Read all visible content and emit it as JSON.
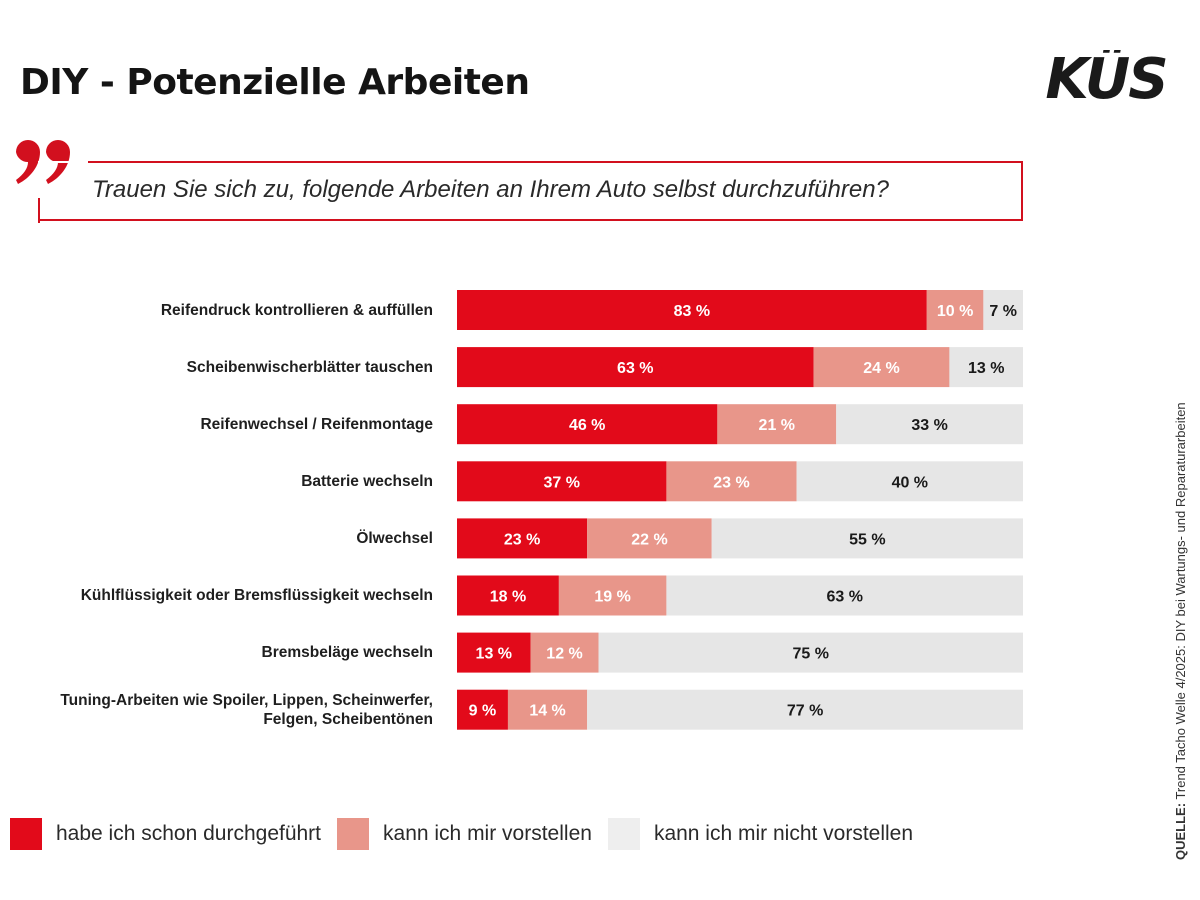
{
  "header": {
    "title": "DIY - Potenzielle Arbeiten",
    "logo_text": "KÜS"
  },
  "question": "Trauen Sie sich zu, folgende Arbeiten an Ihrem Auto selbst durchzuführen?",
  "colors": {
    "done": "#e20a1a",
    "imaginable": "#e8968a",
    "not_imaginable": "#e6e6e6",
    "accent": "#d2101e"
  },
  "legend": [
    {
      "label": "habe ich schon durchgeführt",
      "color": "#e20a1a"
    },
    {
      "label": "kann ich mir vorstellen",
      "color": "#e8968a"
    },
    {
      "label": "kann ich mir nicht vorstellen",
      "color": "#eeeeee"
    }
  ],
  "source": {
    "label": "QUELLE:",
    "text": " Trend Tacho Welle 4/2025: DIY bei Wartungs- und Reparaturarbeiten"
  },
  "chart_data": {
    "type": "bar",
    "orientation": "horizontal",
    "stacked": true,
    "title": "DIY - Potenzielle Arbeiten",
    "subtitle": "Trauen Sie sich zu, folgende Arbeiten an Ihrem Auto selbst durchzuführen?",
    "unit": "%",
    "xlim": [
      0,
      100
    ],
    "grid": false,
    "legend_position": "bottom-left",
    "categories": [
      [
        "Reifendruck kontrollieren & auffüllen"
      ],
      [
        "Scheibenwischerblätter tauschen"
      ],
      [
        "Reifenwechsel / Reifenmontage"
      ],
      [
        "Batterie wechseln"
      ],
      [
        "Ölwechsel"
      ],
      [
        "Kühlflüssigkeit oder Bremsflüssigkeit wechseln"
      ],
      [
        "Bremsbeläge wechseln"
      ],
      [
        "Tuning-Arbeiten wie Spoiler, Lippen, Scheinwerfer,",
        "Felgen, Scheibentönen"
      ]
    ],
    "series": [
      {
        "name": "habe ich schon durchgeführt",
        "values": [
          83,
          63,
          46,
          37,
          23,
          18,
          13,
          9
        ]
      },
      {
        "name": "kann ich mir vorstellen",
        "values": [
          10,
          24,
          21,
          23,
          22,
          19,
          12,
          14
        ]
      },
      {
        "name": "kann ich mir nicht vorstellen",
        "values": [
          7,
          13,
          33,
          40,
          55,
          63,
          75,
          77
        ]
      }
    ],
    "value_labels": [
      [
        "83 %",
        "10 %",
        "7 %"
      ],
      [
        "63 %",
        "24 %",
        "13 %"
      ],
      [
        "46 %",
        "21 %",
        "33 %"
      ],
      [
        "37 %",
        "23 %",
        "40 %"
      ],
      [
        "23 %",
        "22 %",
        "55 %"
      ],
      [
        "18 %",
        "19 %",
        "63 %"
      ],
      [
        "13 %",
        "12 %",
        "75 %"
      ],
      [
        "9 %",
        "14 %",
        "77 %"
      ]
    ]
  }
}
